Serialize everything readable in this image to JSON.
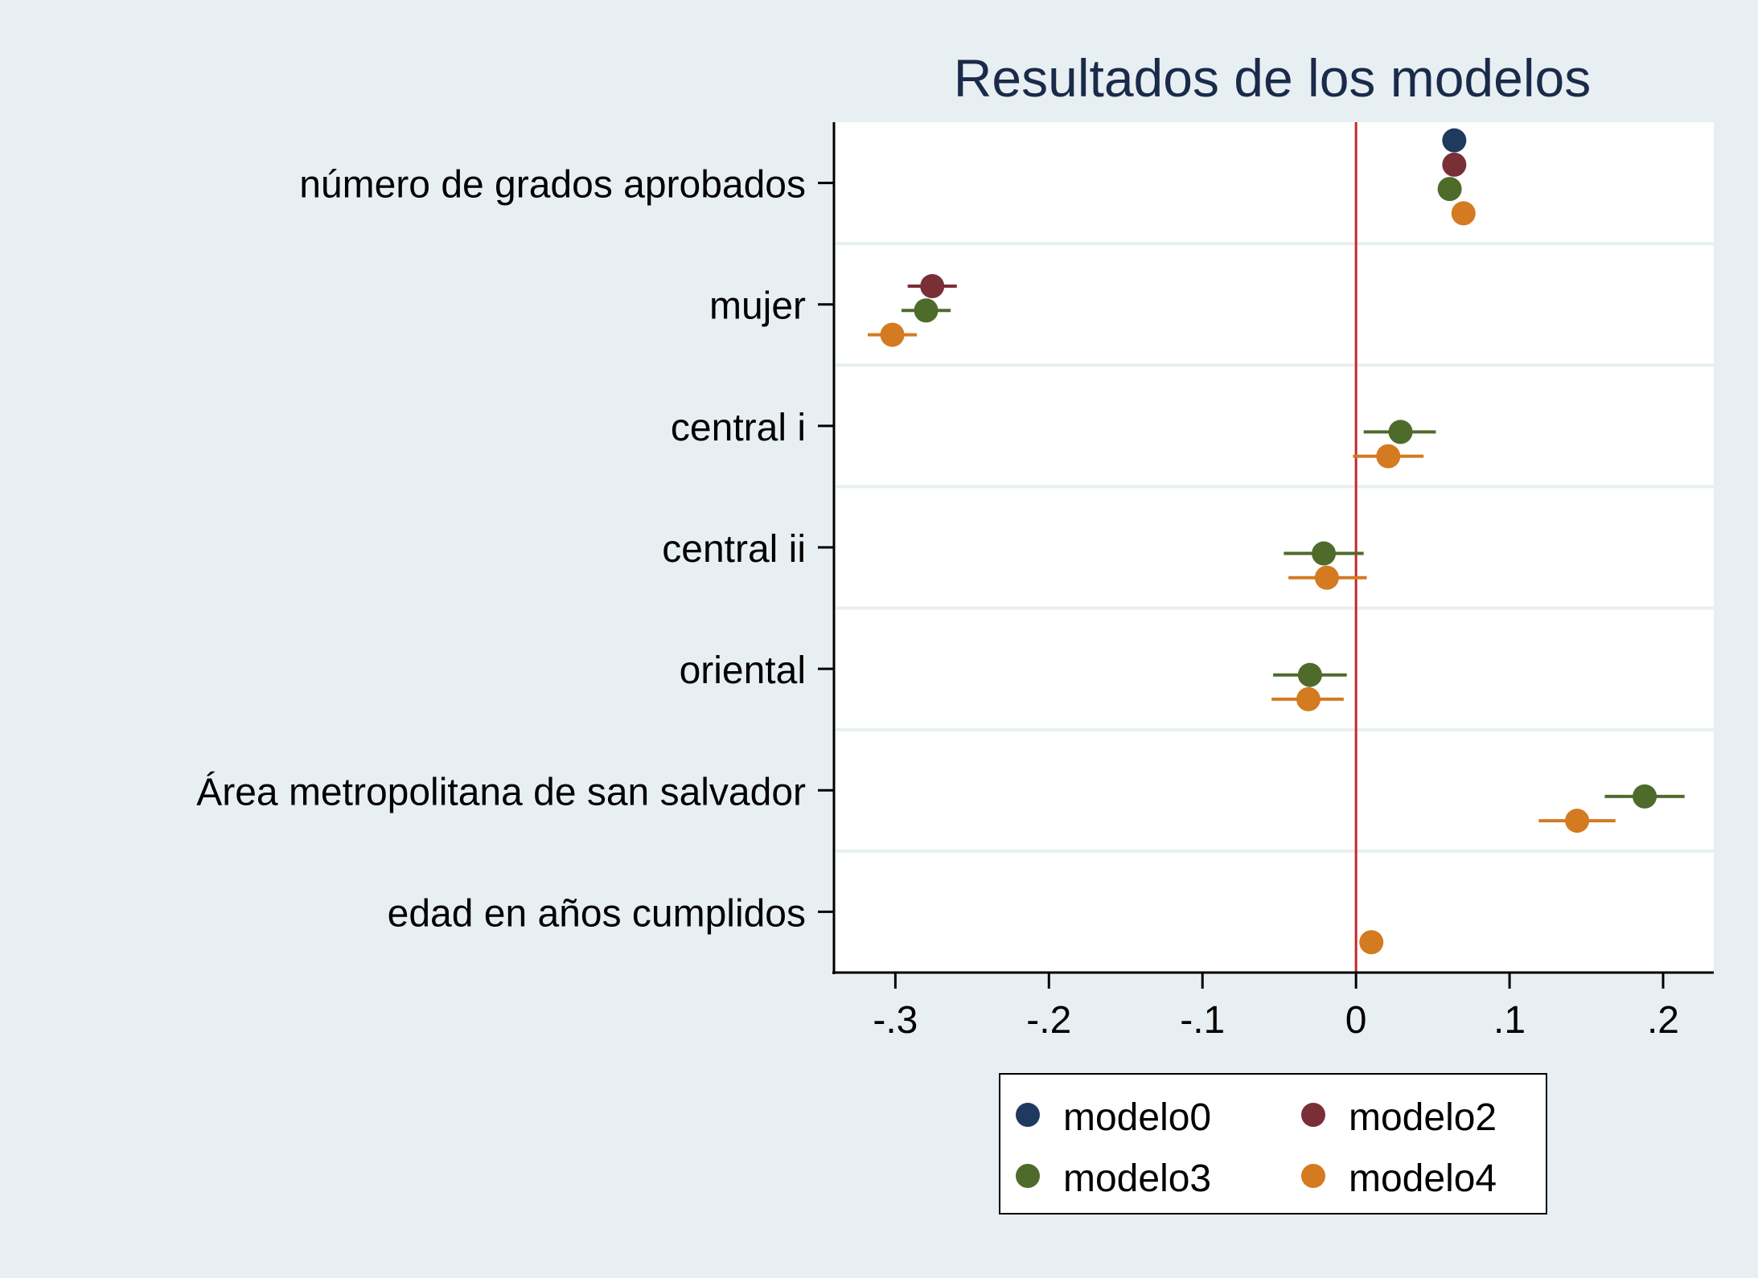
{
  "chart_data": {
    "type": "scatter",
    "subtype": "coefficient-plot",
    "title": "Resultados de los modelos",
    "xlabel": "",
    "ylabel": "",
    "xlim": [
      -0.34,
      0.233
    ],
    "xticks": [
      -0.3,
      -0.2,
      -0.1,
      0,
      0.1,
      0.2
    ],
    "xtick_labels": [
      "-.3",
      "-.2",
      "-.1",
      "0",
      ".1",
      ".2"
    ],
    "reference_line": 0,
    "grid": "horizontal separators between categories",
    "legend_position": "bottom",
    "categories": [
      "número de grados aprobados",
      "mujer",
      "central i",
      "central ii",
      "oriental",
      "Área metropolitana de san salvador",
      "edad en años cumplidos"
    ],
    "series": [
      {
        "name": "modelo0",
        "color": "#1f3a5f",
        "points": [
          {
            "category": 0,
            "value": 0.064,
            "lo": 0.062,
            "hi": 0.066
          }
        ]
      },
      {
        "name": "modelo2",
        "color": "#7a2f36",
        "points": [
          {
            "category": 0,
            "value": 0.064,
            "lo": 0.062,
            "hi": 0.066
          },
          {
            "category": 1,
            "value": -0.276,
            "lo": -0.292,
            "hi": -0.26
          }
        ]
      },
      {
        "name": "modelo3",
        "color": "#4e6b2b",
        "points": [
          {
            "category": 0,
            "value": 0.061,
            "lo": 0.059,
            "hi": 0.063
          },
          {
            "category": 1,
            "value": -0.28,
            "lo": -0.296,
            "hi": -0.264
          },
          {
            "category": 2,
            "value": 0.029,
            "lo": 0.005,
            "hi": 0.052
          },
          {
            "category": 3,
            "value": -0.021,
            "lo": -0.047,
            "hi": 0.005
          },
          {
            "category": 4,
            "value": -0.03,
            "lo": -0.054,
            "hi": -0.006
          },
          {
            "category": 5,
            "value": 0.188,
            "lo": 0.162,
            "hi": 0.214
          }
        ]
      },
      {
        "name": "modelo4",
        "color": "#d47a21",
        "points": [
          {
            "category": 0,
            "value": 0.07,
            "lo": 0.068,
            "hi": 0.072
          },
          {
            "category": 1,
            "value": -0.302,
            "lo": -0.318,
            "hi": -0.286
          },
          {
            "category": 2,
            "value": 0.021,
            "lo": -0.002,
            "hi": 0.044
          },
          {
            "category": 3,
            "value": -0.019,
            "lo": -0.044,
            "hi": 0.007
          },
          {
            "category": 4,
            "value": -0.031,
            "lo": -0.055,
            "hi": -0.008
          },
          {
            "category": 5,
            "value": 0.144,
            "lo": 0.119,
            "hi": 0.169
          },
          {
            "category": 6,
            "value": 0.01,
            "lo": 0.009,
            "hi": 0.011
          }
        ]
      }
    ]
  },
  "colors": {
    "page_background": "#e8eff2",
    "plot_background": "#ffffff",
    "title": "#1a2a4a",
    "reference_line": "#c0282d",
    "separator": "#e8eff2"
  }
}
